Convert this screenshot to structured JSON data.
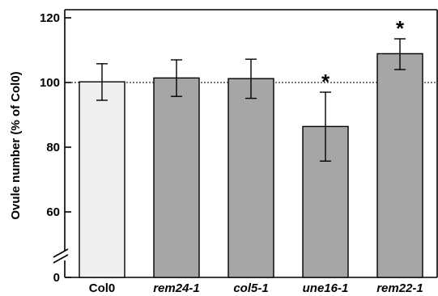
{
  "chart_data": {
    "type": "bar",
    "categories": [
      "Col0",
      "rem24-1",
      "col5-1",
      "une16-1",
      "rem22-1"
    ],
    "italic_categories": [
      false,
      true,
      true,
      true,
      true
    ],
    "values": [
      100.2,
      101.4,
      101.2,
      86.4,
      108.9
    ],
    "error_low": [
      94.5,
      95.7,
      95.1,
      75.7,
      104.0
    ],
    "error_high": [
      105.8,
      107.0,
      107.2,
      97.0,
      113.5
    ],
    "significant": [
      false,
      false,
      false,
      true,
      true
    ],
    "significance_marker": "*",
    "bar_colors": [
      "#efefef",
      "#a6a6a6",
      "#a6a6a6",
      "#a6a6a6",
      "#a6a6a6"
    ],
    "reference_line": 100,
    "ylabel": "Ovule number  (% of Col0)",
    "yticks": [
      120,
      100,
      80,
      60,
      0
    ],
    "ylim": [
      0,
      120
    ],
    "axis_break": true
  }
}
